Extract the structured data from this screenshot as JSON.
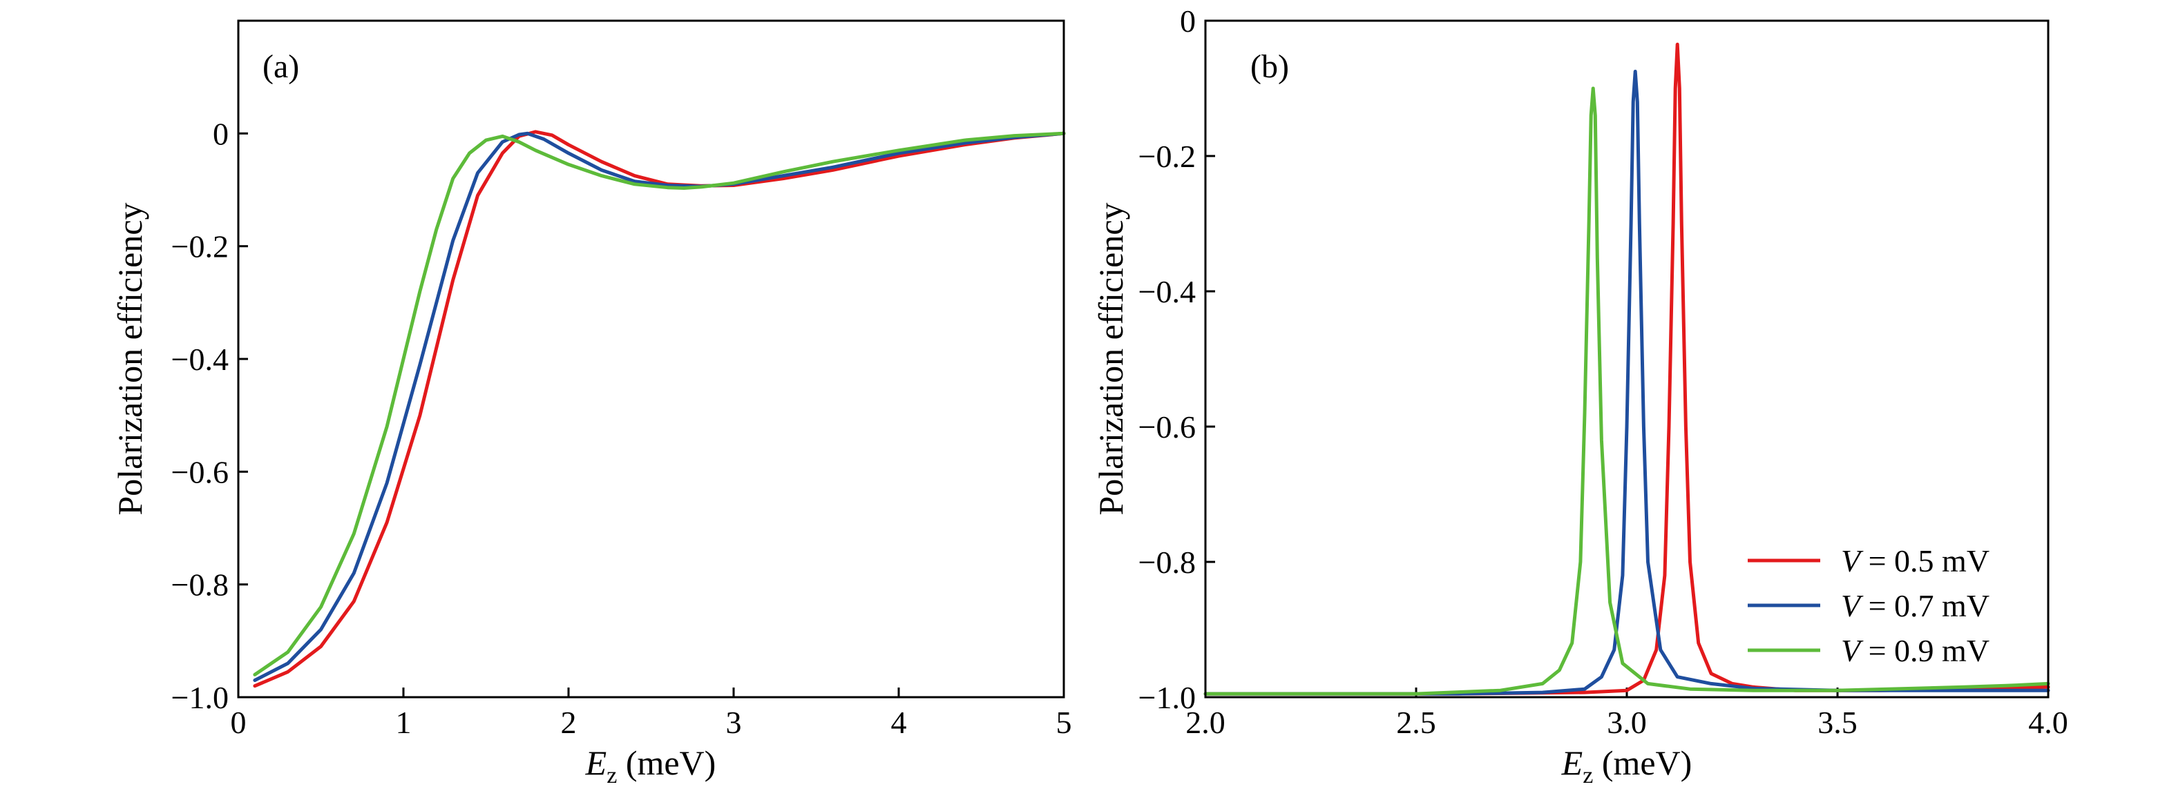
{
  "colors": {
    "red": "#e31a1c",
    "blue": "#1f4e9e",
    "green": "#5dbb3a",
    "axis": "#000000"
  },
  "chart_data": [
    {
      "type": "line",
      "panel_label": "(a)",
      "title": "",
      "xlabel_main": "E",
      "xlabel_sub": "z",
      "xlabel_unit": " (meV)",
      "ylabel": "Polarization efficiency",
      "xlim": [
        0,
        5
      ],
      "ylim": [
        -1.0,
        0.2
      ],
      "xticks": [
        0,
        1,
        2,
        3,
        4,
        5
      ],
      "xtick_labels": [
        "0",
        "1",
        "2",
        "3",
        "4",
        "5"
      ],
      "yticks": [
        -1.0,
        -0.8,
        -0.6,
        -0.4,
        -0.2,
        0
      ],
      "ytick_labels": [
        "−1.0",
        "−0.8",
        "−0.6",
        "−0.4",
        "−0.2",
        "0"
      ],
      "series": [
        {
          "name": "V = 0.5 mV",
          "color": "#e31a1c",
          "x": [
            0.1,
            0.3,
            0.5,
            0.7,
            0.9,
            1.1,
            1.3,
            1.45,
            1.6,
            1.7,
            1.8,
            1.9,
            2.0,
            2.2,
            2.4,
            2.6,
            2.8,
            3.0,
            3.3,
            3.6,
            4.0,
            4.4,
            4.7,
            5.0
          ],
          "y": [
            -0.98,
            -0.955,
            -0.91,
            -0.83,
            -0.69,
            -0.5,
            -0.26,
            -0.11,
            -0.035,
            -0.005,
            0.003,
            -0.003,
            -0.02,
            -0.05,
            -0.075,
            -0.09,
            -0.093,
            -0.092,
            -0.08,
            -0.065,
            -0.04,
            -0.02,
            -0.008,
            0.0
          ]
        },
        {
          "name": "V = 0.7 mV",
          "color": "#1f4e9e",
          "x": [
            0.1,
            0.3,
            0.5,
            0.7,
            0.9,
            1.1,
            1.3,
            1.45,
            1.6,
            1.7,
            1.75,
            1.85,
            2.0,
            2.2,
            2.4,
            2.6,
            2.8,
            3.0,
            3.3,
            3.6,
            4.0,
            4.4,
            4.7,
            5.0
          ],
          "y": [
            -0.97,
            -0.94,
            -0.88,
            -0.78,
            -0.62,
            -0.41,
            -0.19,
            -0.07,
            -0.015,
            -0.002,
            0.0,
            -0.01,
            -0.035,
            -0.065,
            -0.085,
            -0.092,
            -0.094,
            -0.09,
            -0.075,
            -0.06,
            -0.035,
            -0.017,
            -0.007,
            0.0
          ]
        },
        {
          "name": "V = 0.9 mV",
          "color": "#5dbb3a",
          "x": [
            0.1,
            0.3,
            0.5,
            0.7,
            0.9,
            1.0,
            1.1,
            1.2,
            1.3,
            1.4,
            1.5,
            1.6,
            1.7,
            1.8,
            2.0,
            2.2,
            2.4,
            2.6,
            2.7,
            2.8,
            3.0,
            3.3,
            3.6,
            4.0,
            4.4,
            4.7,
            5.0
          ],
          "y": [
            -0.96,
            -0.92,
            -0.84,
            -0.71,
            -0.52,
            -0.4,
            -0.28,
            -0.17,
            -0.08,
            -0.035,
            -0.012,
            -0.005,
            -0.015,
            -0.03,
            -0.055,
            -0.075,
            -0.09,
            -0.096,
            -0.097,
            -0.095,
            -0.088,
            -0.068,
            -0.05,
            -0.03,
            -0.012,
            -0.004,
            0.0
          ]
        }
      ]
    },
    {
      "type": "line",
      "panel_label": "(b)",
      "title": "",
      "xlabel_main": "E",
      "xlabel_sub": "z",
      "xlabel_unit": " (meV)",
      "ylabel": "Polarization efficiency",
      "xlim": [
        2.0,
        4.0
      ],
      "ylim": [
        -1.0,
        0.0
      ],
      "xticks": [
        2.0,
        2.5,
        3.0,
        3.5,
        4.0
      ],
      "xtick_labels": [
        "2.0",
        "2.5",
        "3.0",
        "3.5",
        "4.0"
      ],
      "yticks": [
        -1.0,
        -0.8,
        -0.6,
        -0.4,
        -0.2,
        0
      ],
      "ytick_labels": [
        "−1.0",
        "−0.8",
        "−0.6",
        "−0.4",
        "−0.2",
        "0"
      ],
      "legend_position": "lower-right",
      "legend": [
        {
          "italic": "V",
          "text": " = 0.5 mV",
          "color": "#e31a1c"
        },
        {
          "italic": "V",
          "text": " = 0.7 mV",
          "color": "#1f4e9e"
        },
        {
          "italic": "V",
          "text": " = 0.9 mV",
          "color": "#5dbb3a"
        }
      ],
      "series": [
        {
          "name": "V = 0.5 mV",
          "color": "#e31a1c",
          "x": [
            2.0,
            2.6,
            2.9,
            3.0,
            3.04,
            3.07,
            3.09,
            3.1,
            3.11,
            3.115,
            3.12,
            3.125,
            3.13,
            3.14,
            3.15,
            3.17,
            3.2,
            3.25,
            3.3,
            3.4,
            3.6,
            3.8,
            4.0
          ],
          "y": [
            -0.995,
            -0.995,
            -0.993,
            -0.99,
            -0.975,
            -0.93,
            -0.82,
            -0.6,
            -0.3,
            -0.1,
            -0.035,
            -0.1,
            -0.3,
            -0.6,
            -0.8,
            -0.92,
            -0.965,
            -0.98,
            -0.985,
            -0.99,
            -0.99,
            -0.988,
            -0.985
          ]
        },
        {
          "name": "V = 0.7 mV",
          "color": "#1f4e9e",
          "x": [
            2.0,
            2.6,
            2.8,
            2.9,
            2.94,
            2.97,
            2.99,
            3.0,
            3.01,
            3.015,
            3.02,
            3.025,
            3.03,
            3.04,
            3.05,
            3.08,
            3.12,
            3.2,
            3.3,
            3.5,
            3.8,
            4.0
          ],
          "y": [
            -0.995,
            -0.995,
            -0.993,
            -0.988,
            -0.97,
            -0.93,
            -0.82,
            -0.6,
            -0.3,
            -0.12,
            -0.075,
            -0.12,
            -0.3,
            -0.6,
            -0.8,
            -0.93,
            -0.97,
            -0.98,
            -0.987,
            -0.99,
            -0.99,
            -0.99
          ]
        },
        {
          "name": "V = 0.9 mV",
          "color": "#5dbb3a",
          "x": [
            2.0,
            2.5,
            2.7,
            2.8,
            2.84,
            2.87,
            2.89,
            2.9,
            2.91,
            2.915,
            2.92,
            2.925,
            2.93,
            2.94,
            2.96,
            2.99,
            3.05,
            3.15,
            3.3,
            3.5,
            3.8,
            3.9,
            4.0
          ],
          "y": [
            -0.995,
            -0.995,
            -0.99,
            -0.98,
            -0.96,
            -0.92,
            -0.8,
            -0.58,
            -0.3,
            -0.14,
            -0.1,
            -0.14,
            -0.35,
            -0.62,
            -0.86,
            -0.95,
            -0.98,
            -0.988,
            -0.99,
            -0.99,
            -0.985,
            -0.983,
            -0.98
          ]
        }
      ]
    }
  ]
}
